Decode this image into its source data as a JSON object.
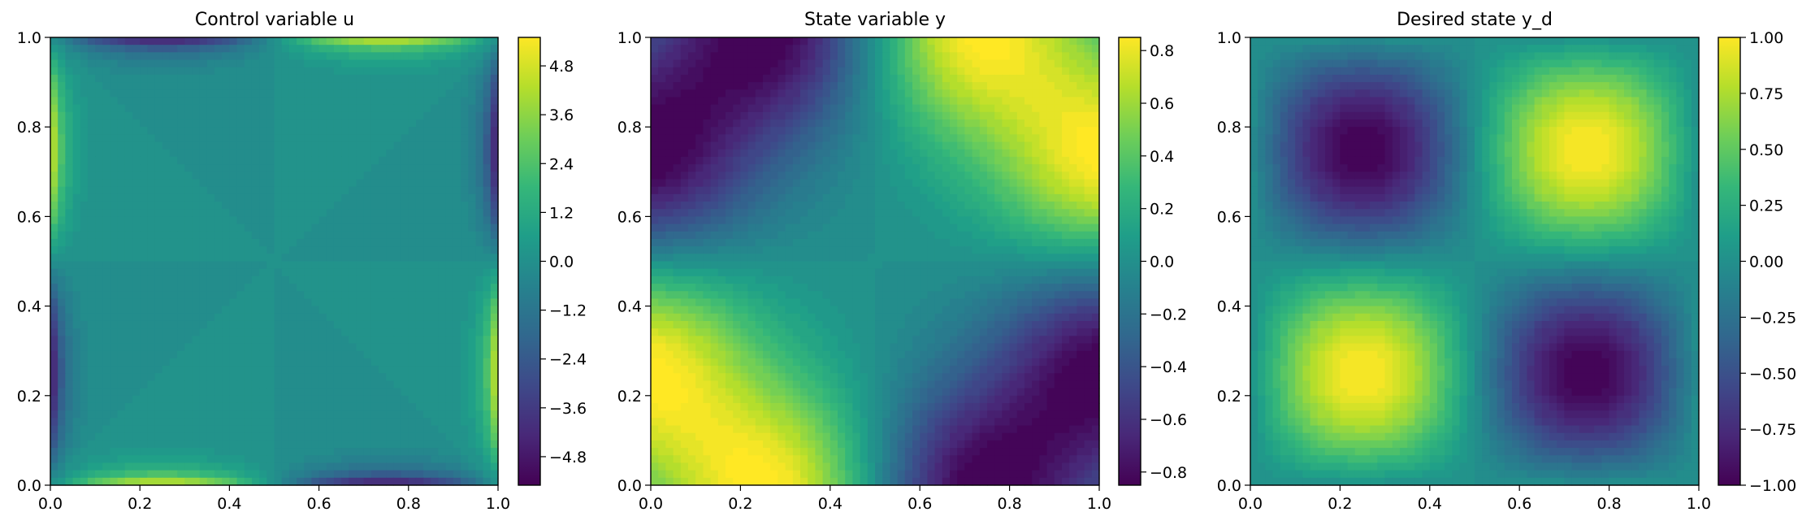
{
  "colormap": "viridis",
  "colormap_stops": [
    "#440154",
    "#482878",
    "#3e4989",
    "#31688e",
    "#26828e",
    "#1f9e89",
    "#35b779",
    "#6ece58",
    "#b5de2b",
    "#fde725"
  ],
  "chart_data": [
    {
      "type": "heatmap",
      "title": "Control variable u",
      "field": "boundary-concentrated control: approx 0 in the interior, peaks of about +/-5.5 along the edges",
      "x": [
        0,
        0.2,
        0.4,
        0.6,
        0.8,
        1.0
      ],
      "y": [
        0,
        0.2,
        0.4,
        0.6,
        0.8,
        1.0
      ],
      "xlim": [
        0,
        1
      ],
      "ylim": [
        0,
        1
      ],
      "x_ticks": [
        "0.0",
        "0.2",
        "0.4",
        "0.6",
        "0.8",
        "1.0"
      ],
      "y_ticks": [
        "0.0",
        "0.2",
        "0.4",
        "0.6",
        "0.8",
        "1.0"
      ],
      "value_range": [
        -5.5,
        5.5
      ],
      "colorbar_ticks": [
        -4.8,
        -3.6,
        -2.4,
        -1.2,
        0.0,
        1.2,
        2.4,
        3.6,
        4.8
      ],
      "colorbar_tick_labels": [
        "−4.8",
        "−3.6",
        "−2.4",
        "−1.2",
        "0.0",
        "1.2",
        "2.4",
        "3.6",
        "4.8"
      ]
    },
    {
      "type": "heatmap",
      "title": "State variable y",
      "field": "smoothed state: max approx 0.85 near (0.72, 1.0), (1.0, 0.72), (0.27, 0.0), (0.0, 0.27); min approx -0.85 near (0.27, 1.0), (0.0, 0.73), (0.73, 0.0), (1.0, 0.27)",
      "x": [
        0,
        0.2,
        0.4,
        0.6,
        0.8,
        1.0
      ],
      "y": [
        0,
        0.2,
        0.4,
        0.6,
        0.8,
        1.0
      ],
      "xlim": [
        0,
        1
      ],
      "ylim": [
        0,
        1
      ],
      "x_ticks": [
        "0.0",
        "0.2",
        "0.4",
        "0.6",
        "0.8",
        "1.0"
      ],
      "y_ticks": [
        "0.0",
        "0.2",
        "0.4",
        "0.6",
        "0.8",
        "1.0"
      ],
      "value_range": [
        -0.85,
        0.85
      ],
      "colorbar_ticks": [
        -0.8,
        -0.6,
        -0.4,
        -0.2,
        0.0,
        0.2,
        0.4,
        0.6,
        0.8
      ],
      "colorbar_tick_labels": [
        "−0.8",
        "−0.6",
        "−0.4",
        "−0.2",
        "0.0",
        "0.2",
        "0.4",
        "0.6",
        "0.8"
      ]
    },
    {
      "type": "heatmap",
      "title": "Desired state y_d",
      "field": "y_d = sin(2*pi*x) * sin(2*pi*y): max 1.0 at (0.25, 0.25) and (0.75, 0.75); min -1.0 at (0.25, 0.75) and (0.75, 0.25)",
      "x": [
        0,
        0.2,
        0.4,
        0.6,
        0.8,
        1.0
      ],
      "y": [
        0,
        0.2,
        0.4,
        0.6,
        0.8,
        1.0
      ],
      "xlim": [
        0,
        1
      ],
      "ylim": [
        0,
        1
      ],
      "x_ticks": [
        "0.0",
        "0.2",
        "0.4",
        "0.6",
        "0.8",
        "1.0"
      ],
      "y_ticks": [
        "0.0",
        "0.2",
        "0.4",
        "0.6",
        "0.8",
        "1.0"
      ],
      "value_range": [
        -1.0,
        1.0
      ],
      "colorbar_ticks": [
        -1.0,
        -0.75,
        -0.5,
        -0.25,
        0.0,
        0.25,
        0.5,
        0.75,
        1.0
      ],
      "colorbar_tick_labels": [
        "−1.00",
        "−0.75",
        "−0.50",
        "−0.25",
        "0.00",
        "0.25",
        "0.50",
        "0.75",
        "1.00"
      ]
    }
  ]
}
